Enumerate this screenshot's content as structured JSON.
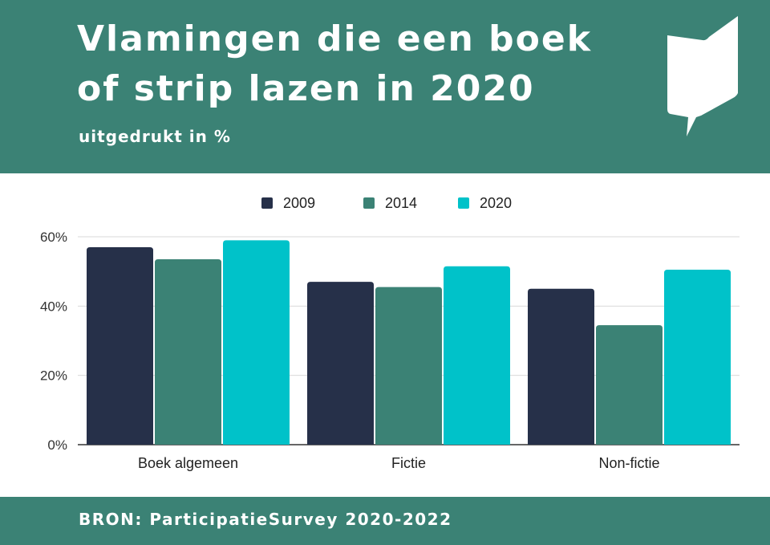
{
  "header": {
    "title_line1": "Vlamingen die een boek",
    "title_line2": "of strip lazen in 2020",
    "subtitle": "uitgedrukt in %"
  },
  "footer": {
    "source": "BRON: ParticipatieSurvey 2020-2022"
  },
  "colors": {
    "header_bg": "#3b8275",
    "2009": "#263049",
    "2014": "#3b8275",
    "2020": "#00c2c9"
  },
  "icons": {
    "logo": "book-speech-bubble-icon"
  },
  "chart_data": {
    "type": "bar",
    "categories": [
      "Boek algemeen",
      "Fictie",
      "Non-fictie"
    ],
    "series": [
      {
        "name": "2009",
        "color": "#263049",
        "values": [
          57,
          47,
          45
        ]
      },
      {
        "name": "2014",
        "color": "#3b8275",
        "values": [
          53.5,
          45.5,
          34.5
        ]
      },
      {
        "name": "2020",
        "color": "#00c2c9",
        "values": [
          59,
          51.5,
          50.5
        ]
      }
    ],
    "yticks": [
      "0%",
      "20%",
      "40%",
      "60%"
    ],
    "ytick_values": [
      0,
      20,
      40,
      60
    ],
    "ylim": [
      0,
      60
    ],
    "legend": "top-center",
    "grid": true
  }
}
